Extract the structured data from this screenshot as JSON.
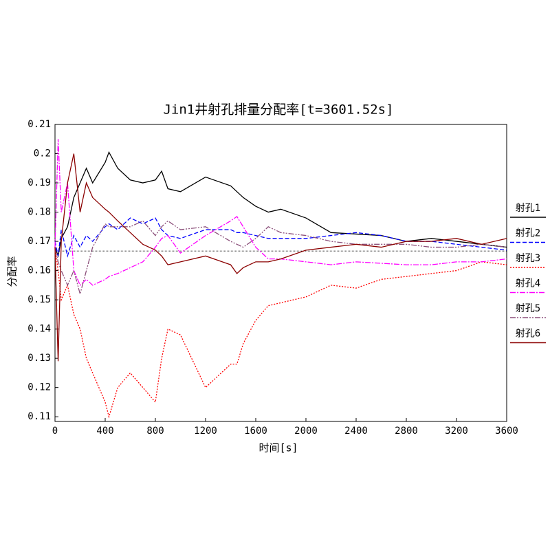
{
  "chart_data": {
    "type": "line",
    "title": "Jin1井射孔排量分配率[t=3601.52s]",
    "x_label": "时间[s]",
    "y_label": "分配率",
    "x": [
      0,
      25,
      50,
      100,
      150,
      200,
      250,
      300,
      400,
      430,
      500,
      600,
      700,
      800,
      850,
      900,
      1000,
      1200,
      1400,
      1450,
      1500,
      1600,
      1700,
      1800,
      2000,
      2200,
      2400,
      2600,
      2800,
      3000,
      3200,
      3400,
      3600
    ],
    "series": [
      {
        "name": "射孔1",
        "color": "#000000",
        "dash": "none",
        "values": [
          0.168,
          0.165,
          0.171,
          0.175,
          0.185,
          0.19,
          0.195,
          0.19,
          0.197,
          0.2005,
          0.195,
          0.191,
          0.19,
          0.191,
          0.194,
          0.188,
          0.187,
          0.192,
          0.189,
          0.187,
          0.185,
          0.182,
          0.18,
          0.181,
          0.178,
          0.173,
          0.1725,
          0.172,
          0.17,
          0.171,
          0.17,
          0.169,
          0.168
        ]
      },
      {
        "name": "射孔2",
        "color": "#0000ff",
        "dash": "6,3",
        "values": [
          0.17,
          0.165,
          0.174,
          0.165,
          0.172,
          0.168,
          0.172,
          0.17,
          0.175,
          0.176,
          0.174,
          0.178,
          0.176,
          0.178,
          0.174,
          0.172,
          0.171,
          0.174,
          0.174,
          0.173,
          0.173,
          0.172,
          0.171,
          0.171,
          0.171,
          0.172,
          0.173,
          0.172,
          0.17,
          0.17,
          0.169,
          0.168,
          0.167
        ]
      },
      {
        "name": "射孔3",
        "color": "#ff0000",
        "dash": "2,2",
        "values": [
          0.168,
          0.16,
          0.15,
          0.155,
          0.145,
          0.14,
          0.13,
          0.125,
          0.115,
          0.11,
          0.12,
          0.125,
          0.12,
          0.115,
          0.13,
          0.14,
          0.138,
          0.12,
          0.128,
          0.128,
          0.135,
          0.143,
          0.148,
          0.149,
          0.151,
          0.155,
          0.154,
          0.157,
          0.158,
          0.159,
          0.16,
          0.163,
          0.162
        ]
      },
      {
        "name": "射孔4",
        "color": "#ff00ff",
        "dash": "8,2,2,2",
        "values": [
          0.168,
          0.205,
          0.18,
          0.19,
          0.16,
          0.155,
          0.157,
          0.155,
          0.157,
          0.158,
          0.159,
          0.161,
          0.163,
          0.168,
          0.171,
          0.172,
          0.166,
          0.172,
          0.177,
          0.1785,
          0.175,
          0.168,
          0.164,
          0.164,
          0.163,
          0.162,
          0.163,
          0.1625,
          0.162,
          0.162,
          0.163,
          0.163,
          0.164
        ]
      },
      {
        "name": "射孔5",
        "color": "#8b4f7a",
        "dash": "8,2,2,2,2,2",
        "values": [
          0.168,
          0.163,
          0.16,
          0.155,
          0.16,
          0.152,
          0.16,
          0.168,
          0.176,
          0.175,
          0.175,
          0.175,
          0.177,
          0.172,
          0.175,
          0.177,
          0.174,
          0.175,
          0.17,
          0.169,
          0.168,
          0.171,
          0.175,
          0.173,
          0.172,
          0.17,
          0.169,
          0.169,
          0.169,
          0.168,
          0.168,
          0.169,
          0.168
        ]
      },
      {
        "name": "射孔6",
        "color": "#8b0000",
        "dash": "none",
        "values": [
          0.168,
          0.129,
          0.17,
          0.19,
          0.2,
          0.18,
          0.19,
          0.185,
          0.181,
          0.18,
          0.177,
          0.173,
          0.169,
          0.167,
          0.165,
          0.162,
          0.163,
          0.165,
          0.162,
          0.159,
          0.161,
          0.163,
          0.163,
          0.164,
          0.167,
          0.168,
          0.169,
          0.168,
          0.17,
          0.17,
          0.171,
          0.169,
          0.171
        ]
      }
    ],
    "ref_line": 0.1667,
    "xlim": [
      0,
      3600
    ],
    "xticks": [
      0,
      400,
      800,
      1200,
      1600,
      2000,
      2400,
      2800,
      3200,
      3600
    ],
    "ylim": [
      0.1084,
      0.21
    ],
    "yticks": [
      0.11,
      0.12,
      0.13,
      0.14,
      0.15,
      0.16,
      0.17,
      0.18,
      0.19,
      0.2,
      0.21
    ],
    "legend": "right"
  }
}
